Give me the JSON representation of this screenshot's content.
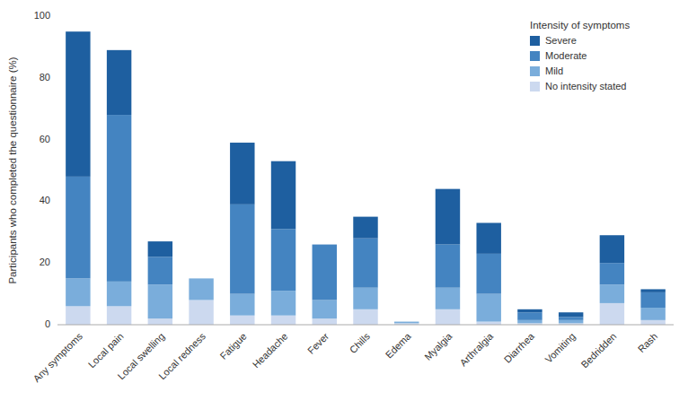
{
  "chart_data": {
    "type": "bar",
    "stacked": true,
    "categories": [
      "Any symptoms",
      "Local pain",
      "Local swelling",
      "Local redness",
      "Fatigue",
      "Headache",
      "Fever",
      "Chills",
      "Edema",
      "Myalgia",
      "Arthralgia",
      "Diarrhea",
      "Vomiting",
      "Bedridden",
      "Rash"
    ],
    "series": [
      {
        "name": "No intensity stated",
        "color": "#ccd9ef",
        "values": [
          6,
          6,
          2,
          8,
          3,
          3,
          2,
          5,
          0.5,
          5,
          1,
          0.5,
          0.5,
          7,
          1.5
        ]
      },
      {
        "name": "Mild",
        "color": "#7aaddb",
        "values": [
          9,
          8,
          11,
          7,
          7,
          8,
          6,
          7,
          0.5,
          7,
          9,
          1,
          1,
          6,
          4
        ]
      },
      {
        "name": "Moderate",
        "color": "#4484c1",
        "values": [
          33,
          54,
          9,
          0,
          29,
          20,
          18,
          16,
          0,
          14,
          13,
          2.5,
          1,
          7,
          5
        ]
      },
      {
        "name": "Severe",
        "color": "#1e5fa0",
        "values": [
          47,
          21,
          5,
          0,
          20,
          22,
          0,
          7,
          0,
          18,
          10,
          1,
          1.5,
          9,
          1
        ]
      }
    ],
    "ylabel": "Participants who completed the questionnaire (%)",
    "ylim": [
      0,
      100
    ],
    "yticks": [
      0,
      20,
      40,
      60,
      80,
      100
    ],
    "legend_title": "Intensity of symptoms",
    "legend": "upper-right",
    "grid": false
  }
}
